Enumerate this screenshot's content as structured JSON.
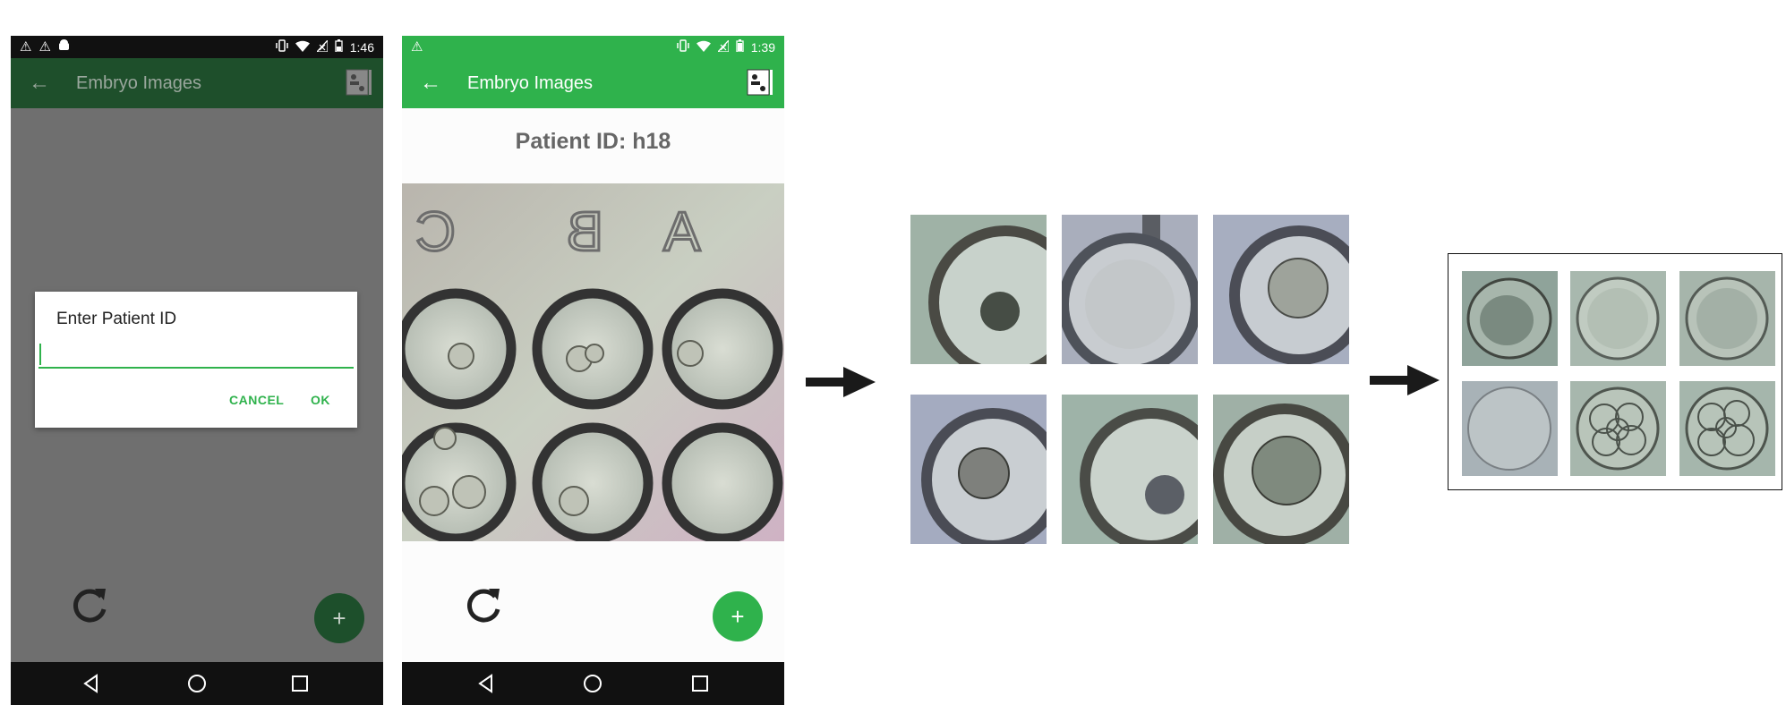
{
  "phone1": {
    "status_time": "1:46",
    "appbar_title": "Embryo Images",
    "dialog": {
      "title": "Enter Patient ID",
      "input_value": "",
      "cancel_label": "CANCEL",
      "ok_label": "OK"
    },
    "fab_label": "+"
  },
  "phone2": {
    "status_time": "1:39",
    "appbar_title": "Embryo Images",
    "patient_id_text": "Patient ID:  h18",
    "fab_label": "+"
  },
  "colors": {
    "accent_green": "#2fb24c",
    "dark_green": "#1e4f2b",
    "dim_overlay": "#6f6f6f"
  },
  "icons": [
    "warning-icon",
    "android-icon",
    "vibrate-icon",
    "wifi-icon",
    "signal-icon",
    "battery-icon",
    "back-arrow-icon",
    "app-logo-icon",
    "refresh-icon",
    "add-icon",
    "nav-back-icon",
    "nav-home-icon",
    "nav-recents-icon",
    "right-arrow-icon"
  ]
}
